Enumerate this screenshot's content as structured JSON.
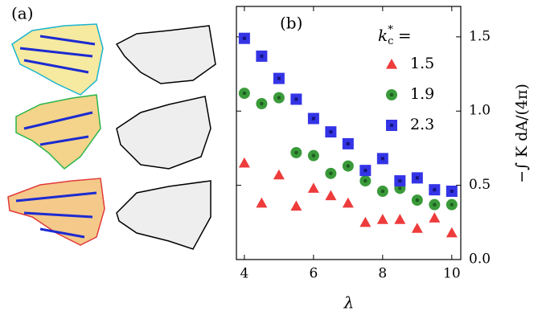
{
  "panel_a_label": "(a)",
  "chart_data": {
    "type": "scatter",
    "panel_label": "(b)",
    "x_label": "λ",
    "y_label": "−∫ K dA/(4π)",
    "legend_title": {
      "base": "k",
      "sub": "c",
      "sup": "*",
      "rest": "="
    },
    "x": [
      4,
      4.5,
      5,
      5.5,
      6,
      6.5,
      7,
      7.5,
      8,
      8.5,
      9,
      9.5,
      10
    ],
    "series": [
      {
        "name": "1.5",
        "color": "#ee3b3b",
        "marker": "triangle",
        "values": [
          0.65,
          0.38,
          0.57,
          0.36,
          0.48,
          0.43,
          0.38,
          0.25,
          0.27,
          0.27,
          0.21,
          0.28,
          0.18
        ]
      },
      {
        "name": "1.9",
        "color": "#3a9a3a",
        "marker": "circle",
        "values": [
          1.12,
          1.05,
          1.09,
          0.72,
          0.7,
          0.58,
          0.63,
          0.53,
          0.46,
          0.48,
          0.4,
          0.37,
          0.37
        ]
      },
      {
        "name": "2.3",
        "color": "#3434e6",
        "marker": "square",
        "values": [
          1.49,
          1.37,
          1.22,
          1.08,
          0.95,
          0.86,
          0.78,
          0.6,
          0.68,
          0.53,
          0.55,
          0.47,
          0.46
        ]
      }
    ],
    "xlim": [
      3.77,
      10.26
    ],
    "ylim": [
      0,
      1.705
    ],
    "xticks": [
      4,
      6,
      8,
      10
    ],
    "yticks": [
      {
        "value": 0,
        "label": "0.0"
      },
      0.5,
      {
        "value": 1,
        "label": "1.0"
      },
      1.5
    ]
  }
}
